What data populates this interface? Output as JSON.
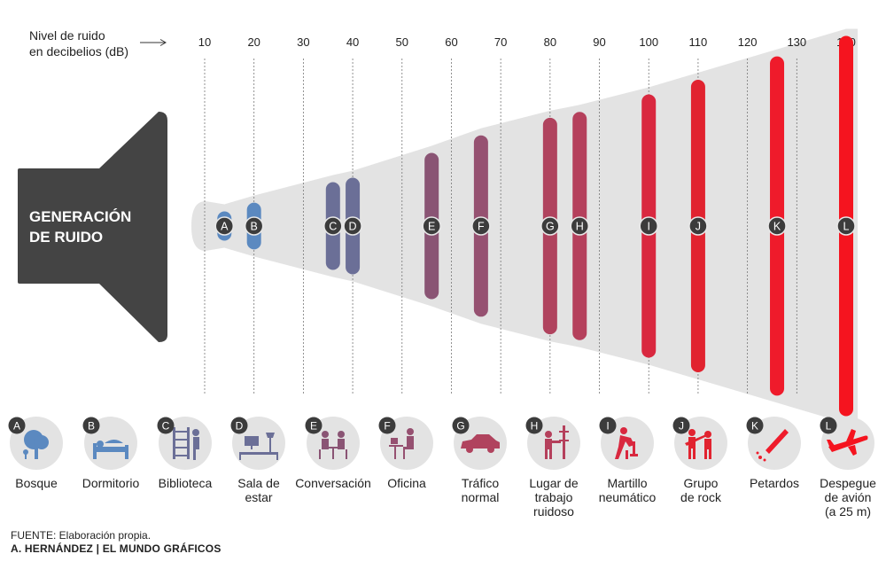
{
  "chart_data": {
    "type": "bar",
    "title": "Nivel de ruido en decibelios (dB)",
    "axis_title_line1": "Nivel de ruido",
    "axis_title_line2": "en decibelios (dB)",
    "megaphone_line1": "GENERACIÓN",
    "megaphone_line2": "DE RUIDO",
    "x_ticks": [
      10,
      20,
      30,
      40,
      50,
      60,
      70,
      80,
      90,
      100,
      110,
      120,
      130,
      140
    ],
    "xlim": [
      10,
      140
    ],
    "sources": [
      {
        "letter": "A",
        "label": "Bosque",
        "db": 14,
        "range": [
          10,
          20
        ],
        "color": "#5b89c0",
        "icon": "tree-icon"
      },
      {
        "letter": "B",
        "label": "Dormitorio",
        "db": 20,
        "range": [
          14,
          26
        ],
        "color": "#5b89c0",
        "icon": "bed-icon"
      },
      {
        "letter": "C",
        "label": "Biblioteca",
        "db": 36,
        "range": [
          24,
          40
        ],
        "color": "#6b6f97",
        "icon": "bookshelf-icon"
      },
      {
        "letter": "D",
        "label": "Sala de estar",
        "db": 40,
        "range": [
          24,
          43
        ],
        "color": "#6b6f97",
        "icon": "living-room-icon"
      },
      {
        "letter": "E",
        "label": "Conversación",
        "db": 56,
        "range": [
          40,
          60
        ],
        "color": "#8a5474",
        "icon": "conversation-icon"
      },
      {
        "letter": "F",
        "label": "Oficina",
        "db": 66,
        "range": [
          42,
          72
        ],
        "color": "#965171",
        "icon": "office-icon"
      },
      {
        "letter": "G",
        "label": "Tráfico normal",
        "db": 80,
        "range": [
          54,
          84
        ],
        "color": "#b0435e",
        "icon": "car-icon"
      },
      {
        "letter": "H",
        "label": "Lugar de trabajo ruidoso",
        "db": 86,
        "range": [
          60,
          88
        ],
        "color": "#b5405c",
        "icon": "worker-icon"
      },
      {
        "letter": "I",
        "label": "Martillo neumático",
        "db": 100,
        "range": [
          70,
          100
        ],
        "color": "#d9283f",
        "icon": "jackhammer-icon"
      },
      {
        "letter": "J",
        "label": "Grupo de rock",
        "db": 110,
        "range": [
          72,
          110
        ],
        "color": "#e1232f",
        "icon": "guitar-icon"
      },
      {
        "letter": "K",
        "label": "Petardos",
        "db": 126,
        "range": [
          80,
          126
        ],
        "color": "#ef1b2b",
        "icon": "firecracker-icon"
      },
      {
        "letter": "L",
        "label": "Despegue de avión (a 25 m)",
        "db": 140,
        "range": [
          90,
          140
        ],
        "color": "#f5141f",
        "icon": "airplane-icon"
      }
    ]
  },
  "footer": {
    "source": "FUENTE: Elaboración propia.",
    "credit": "A. HERNÁNDEZ | EL MUNDO GRÁFICOS"
  }
}
